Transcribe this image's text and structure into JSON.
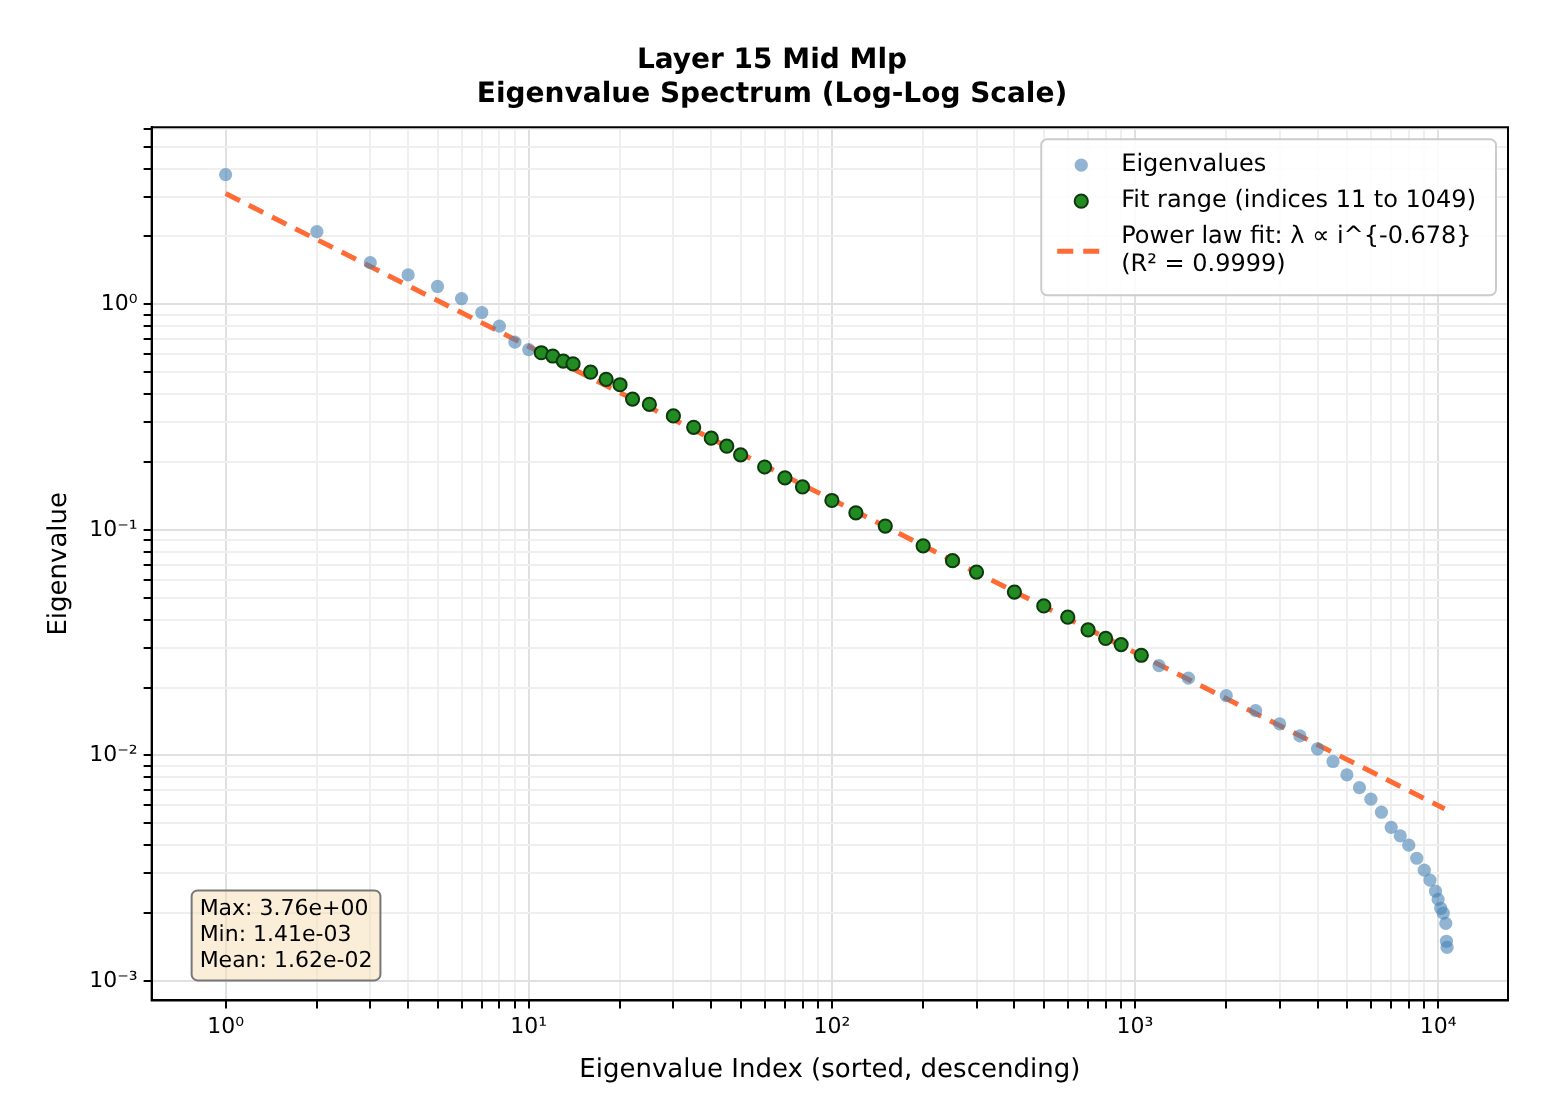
{
  "chart_data": {
    "type": "scatter",
    "title": "Layer 15 Mid Mlp",
    "subtitle": "Eigenvalue Spectrum (Log-Log Scale)",
    "xlabel": "Eigenvalue Index (sorted, descending)",
    "ylabel": "Eigenvalue",
    "log": "xy",
    "grid": true,
    "legend": "top right",
    "xlim": [
      0.57,
      17000
    ],
    "ylim": [
      0.00082,
      6.1
    ],
    "xticks": [
      {
        "value": 1,
        "label": "10⁰"
      },
      {
        "value": 2,
        "label": null
      },
      {
        "value": 3,
        "label": null
      },
      {
        "value": 4,
        "label": null
      },
      {
        "value": 5,
        "label": null
      },
      {
        "value": 6,
        "label": null
      },
      {
        "value": 7,
        "label": null
      },
      {
        "value": 8,
        "label": null
      },
      {
        "value": 9,
        "label": null
      },
      {
        "value": 10,
        "label": "10¹"
      },
      {
        "value": 20,
        "label": null
      },
      {
        "value": 30,
        "label": null
      },
      {
        "value": 40,
        "label": null
      },
      {
        "value": 50,
        "label": null
      },
      {
        "value": 60,
        "label": null
      },
      {
        "value": 70,
        "label": null
      },
      {
        "value": 80,
        "label": null
      },
      {
        "value": 90,
        "label": null
      },
      {
        "value": 100,
        "label": "10²"
      },
      {
        "value": 200,
        "label": null
      },
      {
        "value": 300,
        "label": null
      },
      {
        "value": 400,
        "label": null
      },
      {
        "value": 500,
        "label": null
      },
      {
        "value": 600,
        "label": null
      },
      {
        "value": 700,
        "label": null
      },
      {
        "value": 800,
        "label": null
      },
      {
        "value": 900,
        "label": null
      },
      {
        "value": 1000,
        "label": "10³"
      },
      {
        "value": 2000,
        "label": null
      },
      {
        "value": 3000,
        "label": null
      },
      {
        "value": 4000,
        "label": null
      },
      {
        "value": 5000,
        "label": null
      },
      {
        "value": 6000,
        "label": null
      },
      {
        "value": 7000,
        "label": null
      },
      {
        "value": 8000,
        "label": null
      },
      {
        "value": 9000,
        "label": null
      },
      {
        "value": 10000,
        "label": "10⁴"
      }
    ],
    "yticks": [
      {
        "value": 0.001,
        "label": "10⁻³"
      },
      {
        "value": 0.002,
        "label": null
      },
      {
        "value": 0.003,
        "label": null
      },
      {
        "value": 0.004,
        "label": null
      },
      {
        "value": 0.005,
        "label": null
      },
      {
        "value": 0.006,
        "label": null
      },
      {
        "value": 0.007,
        "label": null
      },
      {
        "value": 0.008,
        "label": null
      },
      {
        "value": 0.009,
        "label": null
      },
      {
        "value": 0.01,
        "label": "10⁻²"
      },
      {
        "value": 0.02,
        "label": null
      },
      {
        "value": 0.03,
        "label": null
      },
      {
        "value": 0.04,
        "label": null
      },
      {
        "value": 0.05,
        "label": null
      },
      {
        "value": 0.06,
        "label": null
      },
      {
        "value": 0.07,
        "label": null
      },
      {
        "value": 0.08,
        "label": null
      },
      {
        "value": 0.09,
        "label": null
      },
      {
        "value": 0.1,
        "label": "10⁻¹"
      },
      {
        "value": 0.2,
        "label": null
      },
      {
        "value": 0.3,
        "label": null
      },
      {
        "value": 0.4,
        "label": null
      },
      {
        "value": 0.5,
        "label": null
      },
      {
        "value": 0.6,
        "label": null
      },
      {
        "value": 0.7,
        "label": null
      },
      {
        "value": 0.8,
        "label": null
      },
      {
        "value": 0.9,
        "label": null
      },
      {
        "value": 1,
        "label": "10⁰"
      },
      {
        "value": 2,
        "label": null
      },
      {
        "value": 3,
        "label": null
      },
      {
        "value": 4,
        "label": null
      },
      {
        "value": 5,
        "label": null
      },
      {
        "value": 6,
        "label": null
      }
    ],
    "series": [
      {
        "name": "Eigenvalues",
        "marker": "circle",
        "color": "#4682b4",
        "x": [
          1,
          2,
          3,
          4,
          5,
          6,
          7,
          8,
          9,
          10,
          1200,
          1500,
          2000,
          2500,
          3000,
          3500,
          4000,
          4500,
          5000,
          5500,
          6000,
          6500,
          7000,
          7500,
          8000,
          8500,
          9000,
          9400,
          9800,
          10000,
          10200,
          10400,
          10600,
          10650,
          10700
        ],
        "values": [
          3.76,
          2.1,
          1.53,
          1.35,
          1.2,
          1.06,
          0.92,
          0.8,
          0.68,
          0.63,
          0.025,
          0.022,
          0.0184,
          0.0158,
          0.0138,
          0.0122,
          0.0107,
          0.0094,
          0.0082,
          0.0072,
          0.0064,
          0.0056,
          0.0048,
          0.0044,
          0.004,
          0.0035,
          0.0031,
          0.0028,
          0.0025,
          0.0023,
          0.0021,
          0.002,
          0.0018,
          0.0015,
          0.00141
        ]
      },
      {
        "name": "Fit range (indices 11 to 1049)",
        "marker": "circle",
        "color": "#228b22",
        "x": [
          11,
          12,
          13,
          14,
          16,
          18,
          20,
          22,
          25,
          30,
          35,
          40,
          45,
          50,
          60,
          70,
          80,
          100,
          120,
          150,
          200,
          250,
          300,
          400,
          500,
          600,
          700,
          800,
          900,
          1049
        ],
        "values": [
          0.61,
          0.59,
          0.56,
          0.545,
          0.5,
          0.465,
          0.44,
          0.38,
          0.36,
          0.32,
          0.285,
          0.255,
          0.235,
          0.215,
          0.19,
          0.17,
          0.155,
          0.135,
          0.119,
          0.104,
          0.085,
          0.073,
          0.065,
          0.053,
          0.046,
          0.041,
          0.036,
          0.033,
          0.031,
          0.0278
        ]
      },
      {
        "name": "Power law fit: λ ∝ i^{-0.678}\n(R² = 0.9999)",
        "type": "line",
        "marker": "none",
        "line_style": "dashed",
        "color": "#ff6b35",
        "x": [
          1,
          10500
        ],
        "values": [
          3.1,
          0.0058
        ]
      }
    ],
    "annotations": [
      "Max: 3.76e+00\nMin: 1.41e-03\nMean: 1.62e-02"
    ]
  }
}
